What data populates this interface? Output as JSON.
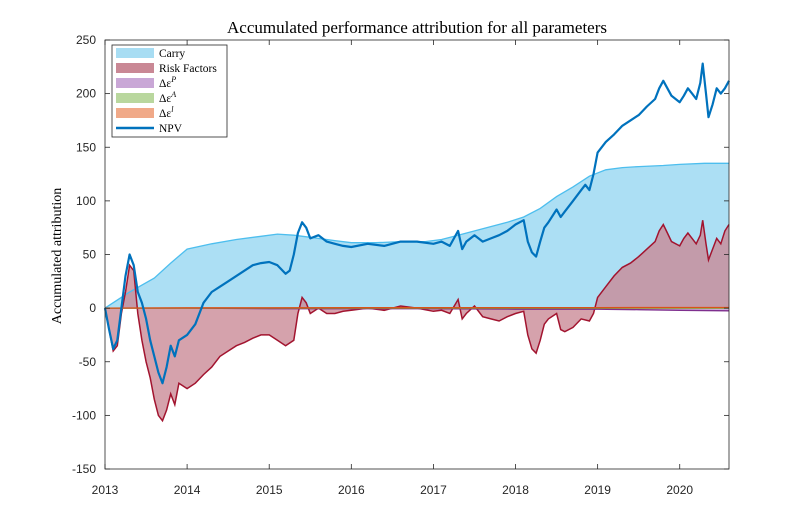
{
  "chart_data": {
    "type": "area",
    "title": "Accumulated performance attribution for all parameters",
    "xlabel": "",
    "ylabel": "Accumulated attribution",
    "xlim": [
      2013,
      2020.6
    ],
    "ylim": [
      -150,
      250
    ],
    "x_ticks": [
      "2013",
      "2014",
      "2015",
      "2016",
      "2017",
      "2018",
      "2019",
      "2020"
    ],
    "y_ticks": [
      "250",
      "200",
      "150",
      "100",
      "50",
      "0",
      "-50",
      "-100",
      "-150"
    ],
    "legend_position": "top-left",
    "colors": {
      "carry_fill": "#A8DDF3",
      "carry_line": "#4DBEEE",
      "risk_fill": "#C98895",
      "risk_line": "#A2142F",
      "dp": "#C9A7D6",
      "dp_line": "#7E2F8E",
      "da": "#B9D79E",
      "da_line": "#77AC30",
      "dl": "#F0A988",
      "dl_line": "#D95319",
      "npv": "#0072BD"
    },
    "legend": [
      {
        "label": "Carry",
        "kind": "patch"
      },
      {
        "label": "Risk Factors",
        "kind": "patch"
      },
      {
        "label": "Δε^P",
        "kind": "patch"
      },
      {
        "label": "Δε^A",
        "kind": "patch"
      },
      {
        "label": "Δε^l",
        "kind": "patch"
      },
      {
        "label": "NPV",
        "kind": "line"
      }
    ],
    "series": [
      {
        "name": "Carry",
        "points": [
          [
            2013.0,
            0
          ],
          [
            2013.3,
            15
          ],
          [
            2013.6,
            28
          ],
          [
            2013.8,
            42
          ],
          [
            2014.0,
            55
          ],
          [
            2014.3,
            60
          ],
          [
            2014.6,
            64
          ],
          [
            2014.9,
            67
          ],
          [
            2015.1,
            69
          ],
          [
            2015.3,
            68
          ],
          [
            2015.5,
            66
          ],
          [
            2015.8,
            63
          ],
          [
            2016.0,
            61
          ],
          [
            2016.3,
            61
          ],
          [
            2016.6,
            62
          ],
          [
            2016.9,
            62
          ],
          [
            2017.1,
            64
          ],
          [
            2017.3,
            68
          ],
          [
            2017.6,
            74
          ],
          [
            2017.9,
            80
          ],
          [
            2018.1,
            85
          ],
          [
            2018.3,
            93
          ],
          [
            2018.5,
            104
          ],
          [
            2018.7,
            113
          ],
          [
            2018.9,
            123
          ],
          [
            2019.1,
            129
          ],
          [
            2019.3,
            131
          ],
          [
            2019.5,
            132
          ],
          [
            2019.8,
            133
          ],
          [
            2020.0,
            134
          ],
          [
            2020.3,
            135
          ],
          [
            2020.6,
            135
          ]
        ]
      },
      {
        "name": "Risk Factors",
        "points": [
          [
            2013.0,
            0
          ],
          [
            2013.05,
            -20
          ],
          [
            2013.1,
            -40
          ],
          [
            2013.15,
            -35
          ],
          [
            2013.2,
            -5
          ],
          [
            2013.25,
            15
          ],
          [
            2013.3,
            40
          ],
          [
            2013.35,
            35
          ],
          [
            2013.4,
            -5
          ],
          [
            2013.45,
            -30
          ],
          [
            2013.5,
            -50
          ],
          [
            2013.55,
            -65
          ],
          [
            2013.6,
            -85
          ],
          [
            2013.65,
            -100
          ],
          [
            2013.7,
            -105
          ],
          [
            2013.75,
            -95
          ],
          [
            2013.8,
            -80
          ],
          [
            2013.85,
            -90
          ],
          [
            2013.9,
            -70
          ],
          [
            2014.0,
            -75
          ],
          [
            2014.1,
            -70
          ],
          [
            2014.2,
            -62
          ],
          [
            2014.3,
            -55
          ],
          [
            2014.4,
            -45
          ],
          [
            2014.5,
            -40
          ],
          [
            2014.6,
            -35
          ],
          [
            2014.7,
            -32
          ],
          [
            2014.8,
            -28
          ],
          [
            2014.9,
            -25
          ],
          [
            2015.0,
            -25
          ],
          [
            2015.1,
            -30
          ],
          [
            2015.2,
            -35
          ],
          [
            2015.3,
            -30
          ],
          [
            2015.35,
            -5
          ],
          [
            2015.4,
            10
          ],
          [
            2015.45,
            5
          ],
          [
            2015.5,
            -5
          ],
          [
            2015.6,
            0
          ],
          [
            2015.7,
            -5
          ],
          [
            2015.8,
            -5
          ],
          [
            2015.9,
            -3
          ],
          [
            2016.0,
            -2
          ],
          [
            2016.2,
            0
          ],
          [
            2016.4,
            -2
          ],
          [
            2016.6,
            2
          ],
          [
            2016.8,
            0
          ],
          [
            2017.0,
            -3
          ],
          [
            2017.1,
            -2
          ],
          [
            2017.2,
            -5
          ],
          [
            2017.3,
            8
          ],
          [
            2017.35,
            -10
          ],
          [
            2017.4,
            -5
          ],
          [
            2017.5,
            2
          ],
          [
            2017.6,
            -8
          ],
          [
            2017.7,
            -10
          ],
          [
            2017.8,
            -12
          ],
          [
            2017.9,
            -8
          ],
          [
            2018.0,
            -5
          ],
          [
            2018.1,
            -3
          ],
          [
            2018.15,
            -25
          ],
          [
            2018.2,
            -38
          ],
          [
            2018.25,
            -42
          ],
          [
            2018.3,
            -30
          ],
          [
            2018.35,
            -15
          ],
          [
            2018.4,
            -10
          ],
          [
            2018.5,
            -5
          ],
          [
            2018.55,
            -20
          ],
          [
            2018.6,
            -22
          ],
          [
            2018.7,
            -18
          ],
          [
            2018.8,
            -10
          ],
          [
            2018.9,
            -12
          ],
          [
            2018.95,
            -5
          ],
          [
            2019.0,
            10
          ],
          [
            2019.1,
            20
          ],
          [
            2019.2,
            30
          ],
          [
            2019.3,
            38
          ],
          [
            2019.4,
            42
          ],
          [
            2019.5,
            48
          ],
          [
            2019.6,
            55
          ],
          [
            2019.7,
            62
          ],
          [
            2019.75,
            72
          ],
          [
            2019.8,
            78
          ],
          [
            2019.85,
            70
          ],
          [
            2019.9,
            62
          ],
          [
            2020.0,
            58
          ],
          [
            2020.05,
            65
          ],
          [
            2020.1,
            70
          ],
          [
            2020.15,
            65
          ],
          [
            2020.2,
            60
          ],
          [
            2020.25,
            68
          ],
          [
            2020.28,
            82
          ],
          [
            2020.32,
            60
          ],
          [
            2020.35,
            45
          ],
          [
            2020.4,
            55
          ],
          [
            2020.45,
            65
          ],
          [
            2020.5,
            60
          ],
          [
            2020.55,
            72
          ],
          [
            2020.6,
            78
          ]
        ]
      },
      {
        "name": "Δε^P",
        "points": [
          [
            2013.0,
            0
          ],
          [
            2014.0,
            0
          ],
          [
            2015.0,
            -0.5
          ],
          [
            2016.0,
            -0.5
          ],
          [
            2017.0,
            -0.5
          ],
          [
            2018.0,
            -1
          ],
          [
            2019.0,
            -1
          ],
          [
            2019.5,
            -1.5
          ],
          [
            2020.0,
            -2
          ],
          [
            2020.6,
            -2.5
          ]
        ]
      },
      {
        "name": "Δε^A",
        "points": [
          [
            2013.0,
            0
          ],
          [
            2014.0,
            0
          ],
          [
            2015.0,
            0
          ],
          [
            2016.0,
            0
          ],
          [
            2017.0,
            0
          ],
          [
            2018.0,
            0
          ],
          [
            2019.0,
            0
          ],
          [
            2020.0,
            0
          ],
          [
            2020.6,
            0
          ]
        ]
      },
      {
        "name": "Δε^l",
        "points": [
          [
            2013.0,
            0
          ],
          [
            2014.0,
            0.3
          ],
          [
            2015.0,
            0.3
          ],
          [
            2016.0,
            0.4
          ],
          [
            2017.0,
            0.4
          ],
          [
            2018.0,
            0.5
          ],
          [
            2019.0,
            0.5
          ],
          [
            2020.0,
            0.6
          ],
          [
            2020.6,
            0.6
          ]
        ]
      },
      {
        "name": "NPV",
        "points": [
          [
            2013.0,
            0
          ],
          [
            2013.05,
            -20
          ],
          [
            2013.1,
            -38
          ],
          [
            2013.15,
            -30
          ],
          [
            2013.2,
            0
          ],
          [
            2013.25,
            30
          ],
          [
            2013.3,
            50
          ],
          [
            2013.35,
            40
          ],
          [
            2013.4,
            15
          ],
          [
            2013.45,
            5
          ],
          [
            2013.5,
            -10
          ],
          [
            2013.55,
            -30
          ],
          [
            2013.6,
            -45
          ],
          [
            2013.65,
            -60
          ],
          [
            2013.7,
            -70
          ],
          [
            2013.75,
            -55
          ],
          [
            2013.8,
            -35
          ],
          [
            2013.85,
            -45
          ],
          [
            2013.9,
            -30
          ],
          [
            2014.0,
            -25
          ],
          [
            2014.1,
            -15
          ],
          [
            2014.2,
            5
          ],
          [
            2014.3,
            15
          ],
          [
            2014.4,
            20
          ],
          [
            2014.5,
            25
          ],
          [
            2014.6,
            30
          ],
          [
            2014.7,
            35
          ],
          [
            2014.8,
            40
          ],
          [
            2014.9,
            42
          ],
          [
            2015.0,
            43
          ],
          [
            2015.1,
            40
          ],
          [
            2015.2,
            32
          ],
          [
            2015.25,
            35
          ],
          [
            2015.3,
            50
          ],
          [
            2015.35,
            70
          ],
          [
            2015.4,
            80
          ],
          [
            2015.45,
            75
          ],
          [
            2015.5,
            65
          ],
          [
            2015.6,
            68
          ],
          [
            2015.7,
            62
          ],
          [
            2015.8,
            60
          ],
          [
            2015.9,
            58
          ],
          [
            2016.0,
            57
          ],
          [
            2016.2,
            60
          ],
          [
            2016.4,
            58
          ],
          [
            2016.6,
            62
          ],
          [
            2016.8,
            62
          ],
          [
            2017.0,
            60
          ],
          [
            2017.1,
            62
          ],
          [
            2017.2,
            58
          ],
          [
            2017.3,
            72
          ],
          [
            2017.35,
            55
          ],
          [
            2017.4,
            62
          ],
          [
            2017.5,
            68
          ],
          [
            2017.6,
            62
          ],
          [
            2017.7,
            65
          ],
          [
            2017.8,
            68
          ],
          [
            2017.9,
            72
          ],
          [
            2018.0,
            78
          ],
          [
            2018.1,
            82
          ],
          [
            2018.15,
            62
          ],
          [
            2018.2,
            52
          ],
          [
            2018.25,
            48
          ],
          [
            2018.3,
            62
          ],
          [
            2018.35,
            75
          ],
          [
            2018.4,
            80
          ],
          [
            2018.5,
            92
          ],
          [
            2018.55,
            85
          ],
          [
            2018.6,
            90
          ],
          [
            2018.7,
            100
          ],
          [
            2018.8,
            110
          ],
          [
            2018.85,
            115
          ],
          [
            2018.9,
            110
          ],
          [
            2018.95,
            125
          ],
          [
            2019.0,
            145
          ],
          [
            2019.1,
            155
          ],
          [
            2019.2,
            162
          ],
          [
            2019.3,
            170
          ],
          [
            2019.4,
            175
          ],
          [
            2019.5,
            180
          ],
          [
            2019.6,
            188
          ],
          [
            2019.7,
            195
          ],
          [
            2019.75,
            205
          ],
          [
            2019.8,
            212
          ],
          [
            2019.85,
            205
          ],
          [
            2019.9,
            198
          ],
          [
            2020.0,
            192
          ],
          [
            2020.05,
            198
          ],
          [
            2020.1,
            205
          ],
          [
            2020.15,
            200
          ],
          [
            2020.2,
            195
          ],
          [
            2020.25,
            210
          ],
          [
            2020.28,
            228
          ],
          [
            2020.32,
            200
          ],
          [
            2020.35,
            178
          ],
          [
            2020.4,
            190
          ],
          [
            2020.45,
            205
          ],
          [
            2020.5,
            200
          ],
          [
            2020.55,
            205
          ],
          [
            2020.6,
            212
          ]
        ]
      }
    ]
  }
}
